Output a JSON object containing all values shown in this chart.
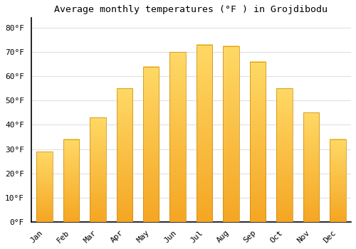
{
  "title": "Average monthly temperatures (°F ) in Grojdibodu",
  "months": [
    "Jan",
    "Feb",
    "Mar",
    "Apr",
    "May",
    "Jun",
    "Jul",
    "Aug",
    "Sep",
    "Oct",
    "Nov",
    "Dec"
  ],
  "values": [
    29,
    34,
    43,
    55,
    64,
    70,
    73,
    72.5,
    66,
    55,
    45,
    34
  ],
  "bar_color_bottom": "#F5A623",
  "bar_color_top": "#FFD966",
  "background_color": "#FFFFFF",
  "grid_color": "#E0E0E0",
  "title_fontsize": 9.5,
  "tick_fontsize": 8,
  "ylim": [
    0,
    84
  ],
  "yticks": [
    0,
    10,
    20,
    30,
    40,
    50,
    60,
    70,
    80
  ]
}
